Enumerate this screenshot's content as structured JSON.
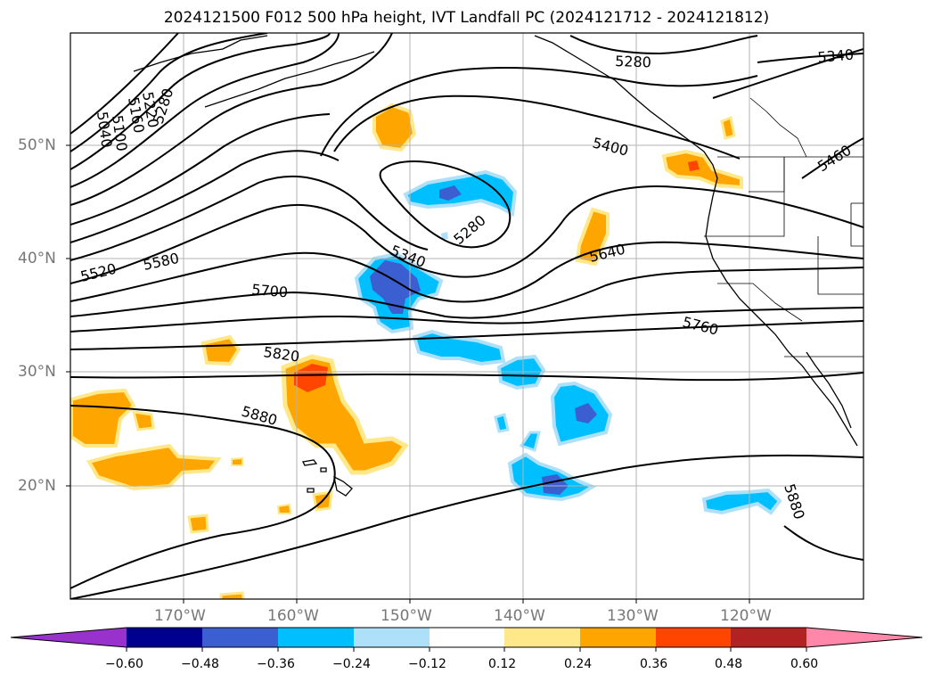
{
  "title": "2024121500 F012 500 hPa height, IVT Landfall PC (2024121712 - 2024121812)",
  "lat_labels": [
    "50°N",
    "40°N",
    "30°N",
    "20°N"
  ],
  "lon_labels": [
    "170°W",
    "160°W",
    "150°W",
    "140°W",
    "130°W",
    "120°W"
  ],
  "contour_labels": [
    "5340",
    "5280",
    "5220",
    "5160",
    "5100",
    "5040",
    "5280",
    "5400",
    "5460",
    "5340",
    "5280",
    "5520",
    "5580",
    "5640",
    "5700",
    "5760",
    "5820",
    "5880",
    "5880"
  ],
  "colorbar": {
    "ticks": [
      "−0.60",
      "−0.48",
      "−0.36",
      "−0.24",
      "−0.12",
      "0.12",
      "0.24",
      "0.36",
      "0.48",
      "0.60"
    ],
    "colors": [
      "#9932cc",
      "#000090",
      "#3b5fd0",
      "#00bfff",
      "#aee0fa",
      "#ffffff",
      "#ffe88a",
      "#ffa500",
      "#ff4500",
      "#b22222",
      "#ff88aa"
    ]
  },
  "map_colors": {
    "strong_positive": "#ff4500",
    "positive": "#ffa500",
    "weak_positive": "#ffe88a",
    "weak_negative": "#aee0fa",
    "negative": "#00bfff",
    "strong_negative": "#3b5fd0"
  }
}
